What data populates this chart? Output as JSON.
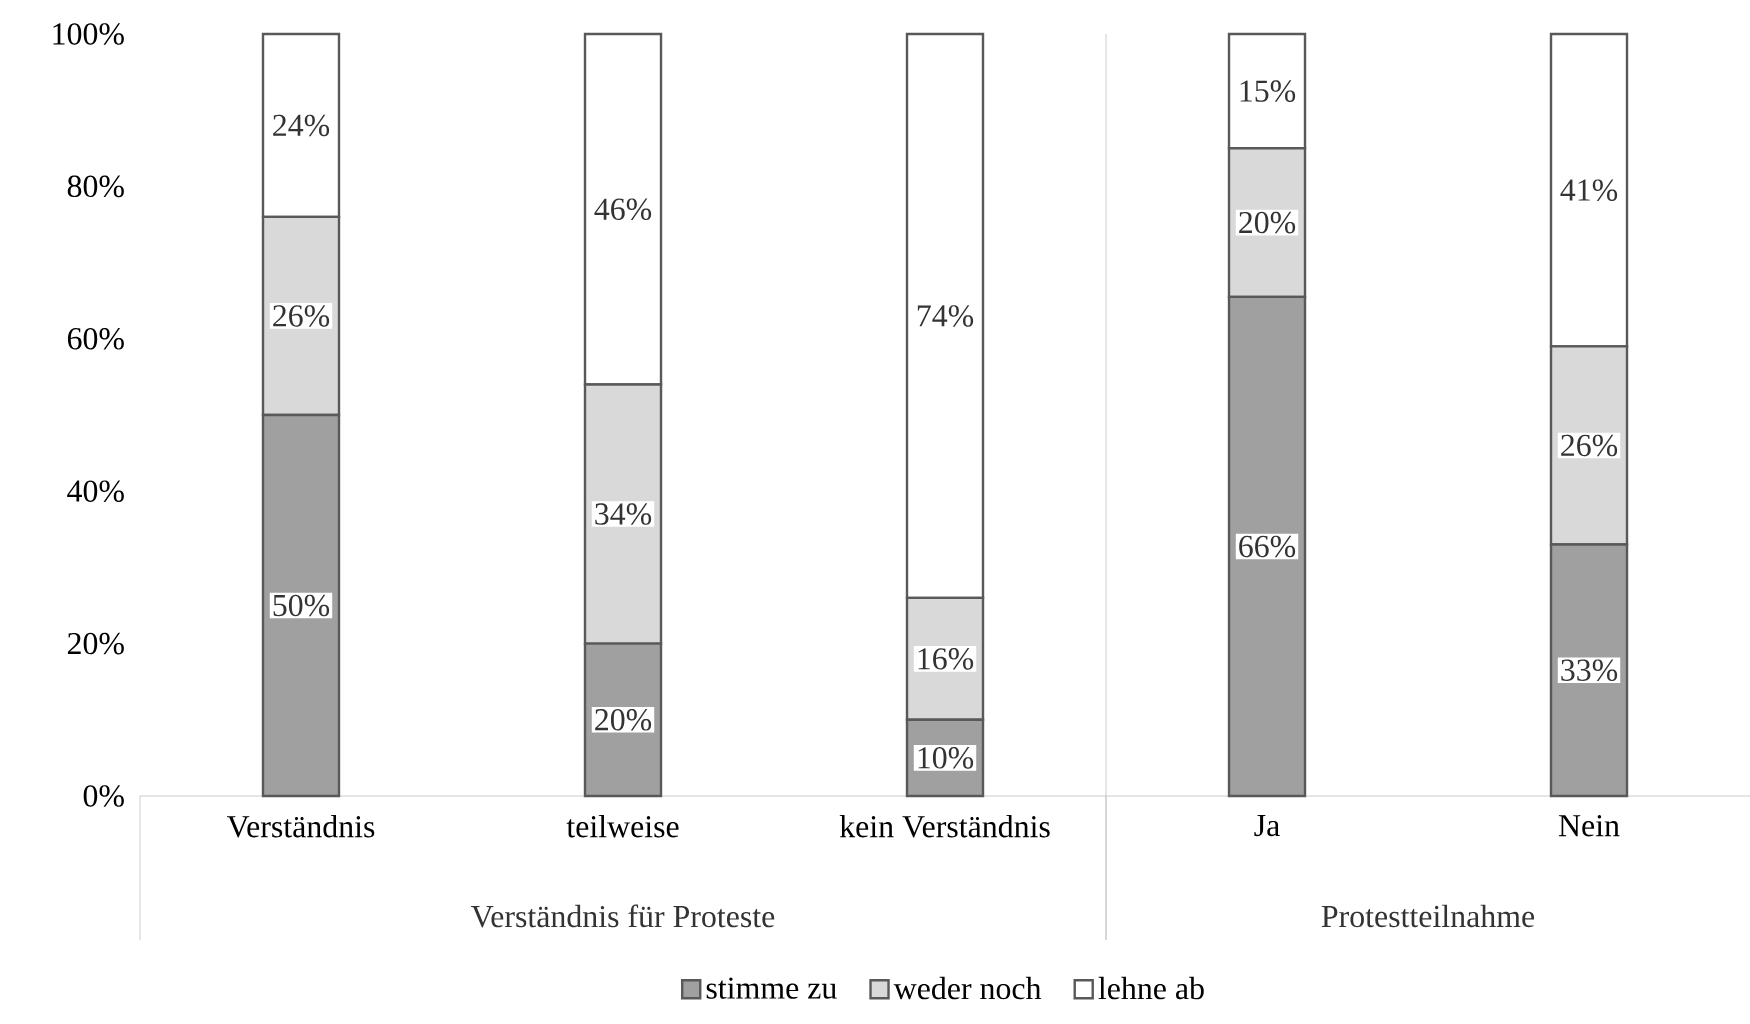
{
  "chart_data": {
    "type": "bar",
    "stacked": true,
    "categories": [
      "Verständnis",
      "teilweise",
      "kein Verständnis",
      "Ja",
      "Nein"
    ],
    "series": [
      {
        "name": "stimme zu",
        "color": "#a0a0a0",
        "values": [
          50,
          20,
          10,
          65.5,
          33
        ],
        "value_labels": [
          "50%",
          "20%",
          "10%",
          "66%",
          "33%"
        ]
      },
      {
        "name": "weder noch",
        "color": "#d9d9d9",
        "values": [
          26,
          34,
          16,
          19.5,
          26
        ],
        "value_labels": [
          "26%",
          "34%",
          "16%",
          "20%",
          "26%"
        ]
      },
      {
        "name": "lehne ab",
        "color": "#ffffff",
        "values": [
          24,
          46,
          74,
          15,
          41
        ],
        "value_labels": [
          "24%",
          "46%",
          "74%",
          "15%",
          "41%"
        ]
      }
    ],
    "ylim": [
      0,
      100
    ],
    "yticks": [
      {
        "value": 0,
        "label": "0%"
      },
      {
        "value": 20,
        "label": "20%"
      },
      {
        "value": 40,
        "label": "40%"
      },
      {
        "value": 60,
        "label": "60%"
      },
      {
        "value": 80,
        "label": "80%"
      },
      {
        "value": 100,
        "label": "100%"
      }
    ],
    "annotations": [
      "Verständnis für Proteste",
      "Protestteilnahme"
    ],
    "legend": "bottom"
  }
}
